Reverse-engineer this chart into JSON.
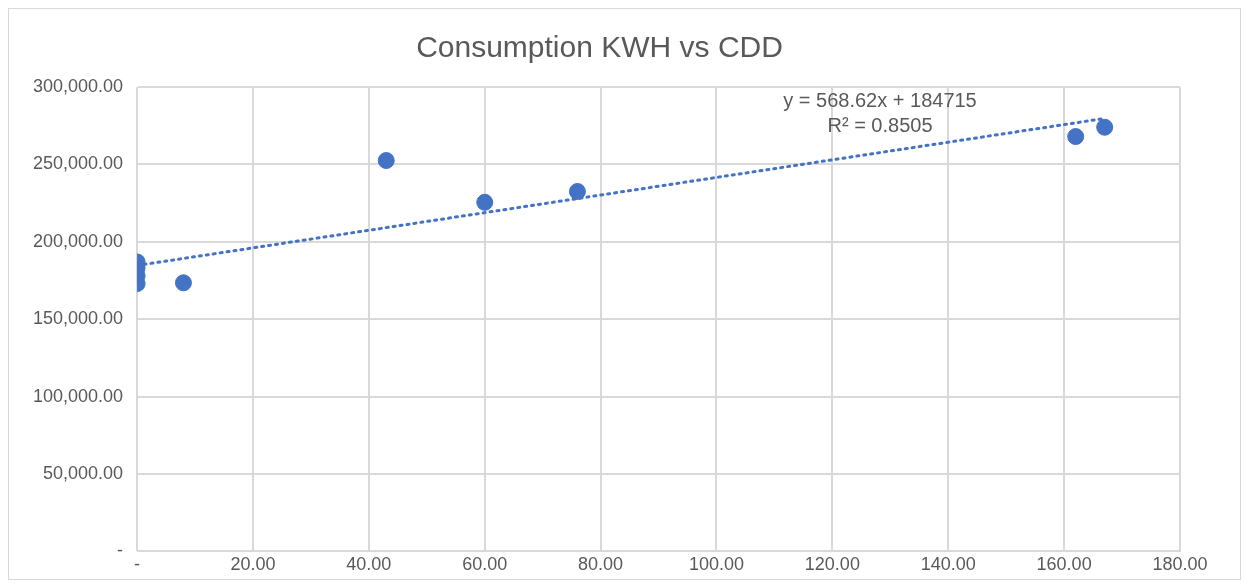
{
  "chart_data": {
    "type": "scatter",
    "title": "Consumption KWH vs CDD",
    "marker": "circle",
    "grid": true,
    "legend": false,
    "series": [
      {
        "color": "#4472c4",
        "x": [
          0,
          0,
          0,
          0,
          8,
          43,
          60,
          76,
          162,
          167
        ],
        "values": [
          187000,
          183000,
          178000,
          173000,
          173500,
          252500,
          225500,
          232500,
          268000,
          274000
        ]
      },
      {
        "type": "line",
        "color": "#4472c4",
        "line_style": "dotted",
        "marker": "none",
        "x": [
          0,
          167
        ],
        "values": [
          184700,
          279700
        ]
      }
    ],
    "annotations": [
      "y = 568.62x + 184715",
      "R² = 0.8505"
    ],
    "xlim": [
      0,
      180
    ],
    "xticks": [
      {
        "value": 0,
        "label": "-"
      },
      {
        "value": 20,
        "label": "20.00"
      },
      {
        "value": 40,
        "label": "40.00"
      },
      {
        "value": 60,
        "label": "60.00"
      },
      {
        "value": 80,
        "label": "80.00"
      },
      {
        "value": 100,
        "label": "100.00"
      },
      {
        "value": 120,
        "label": "120.00"
      },
      {
        "value": 140,
        "label": "140.00"
      },
      {
        "value": 160,
        "label": "160.00"
      },
      {
        "value": 180,
        "label": "180.00"
      }
    ],
    "ylim": [
      0,
      300000
    ],
    "yticks": [
      {
        "value": 0,
        "label": "-"
      },
      {
        "value": 50000,
        "label": "50,000.00"
      },
      {
        "value": 100000,
        "label": "100,000.00"
      },
      {
        "value": 150000,
        "label": "150,000.00"
      },
      {
        "value": 200000,
        "label": "200,000.00"
      },
      {
        "value": 250000,
        "label": "250,000.00"
      },
      {
        "value": 300000,
        "label": "300,000.00"
      }
    ]
  }
}
